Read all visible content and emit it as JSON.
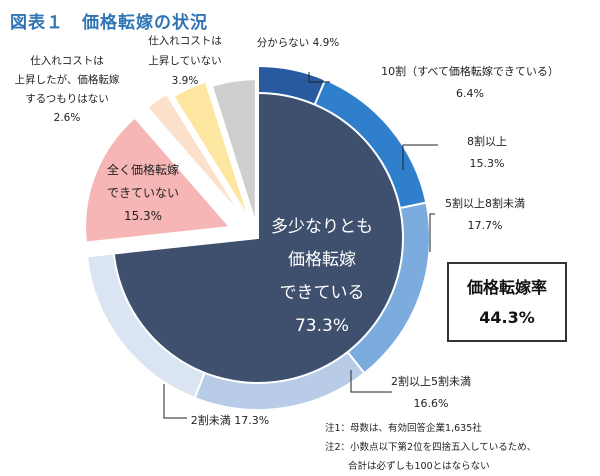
{
  "title_prefix": "図表１",
  "title_main": "価格転嫁の状況",
  "chart_data": {
    "type": "pie",
    "title": "図表１　価格転嫁の状況",
    "unit": "%",
    "outer_ring": [
      {
        "label": "10割（すべて価格転嫁できている）",
        "value": 6.4,
        "value_text": "6.4%",
        "color": "#285aa0"
      },
      {
        "label": "8割以上",
        "value": 15.3,
        "value_text": "15.3%",
        "color": "#2f7fcd"
      },
      {
        "label": "5割以上8割未満",
        "value": 17.7,
        "value_text": "17.7%",
        "color": "#7cacde"
      },
      {
        "label": "2割以上5割未満",
        "value": 16.6,
        "value_text": "16.6%",
        "color": "#b8cce8"
      },
      {
        "label": "2割未満",
        "value": 17.3,
        "value_text": "17.3%",
        "color": "#dae4f2"
      }
    ],
    "slices": [
      {
        "lines": [
          "多少なりとも",
          "価格転嫁",
          "できている"
        ],
        "value": 73.3,
        "value_text": "73.3%",
        "color": "#3f4f6e"
      },
      {
        "lines": [
          "全く価格転嫁",
          "できていない"
        ],
        "value": 15.3,
        "value_text": "15.3%",
        "color": "#f7b6b6"
      },
      {
        "lines": [
          "仕入れコストは",
          "上昇したが、価格転嫁",
          "するつもりはない"
        ],
        "value": 2.6,
        "value_text": "2.6%",
        "color": "#fbe0cc"
      },
      {
        "lines": [
          "仕入れコストは",
          "上昇していない"
        ],
        "value": 3.9,
        "value_text": "3.9%",
        "color": "#fde7a0"
      },
      {
        "lines": [
          "分からない"
        ],
        "value": 4.9,
        "value_text": "4.9%",
        "color": "#cfcfcf"
      }
    ]
  },
  "rate_box": {
    "label": "価格転嫁率",
    "value": "44.3%"
  },
  "notes": [
    "注1：母数は、有効回答企業1,635社",
    "注2：小数点以下第2位を四捨五入しているため、",
    "合計は必ずしも100とはならない"
  ]
}
